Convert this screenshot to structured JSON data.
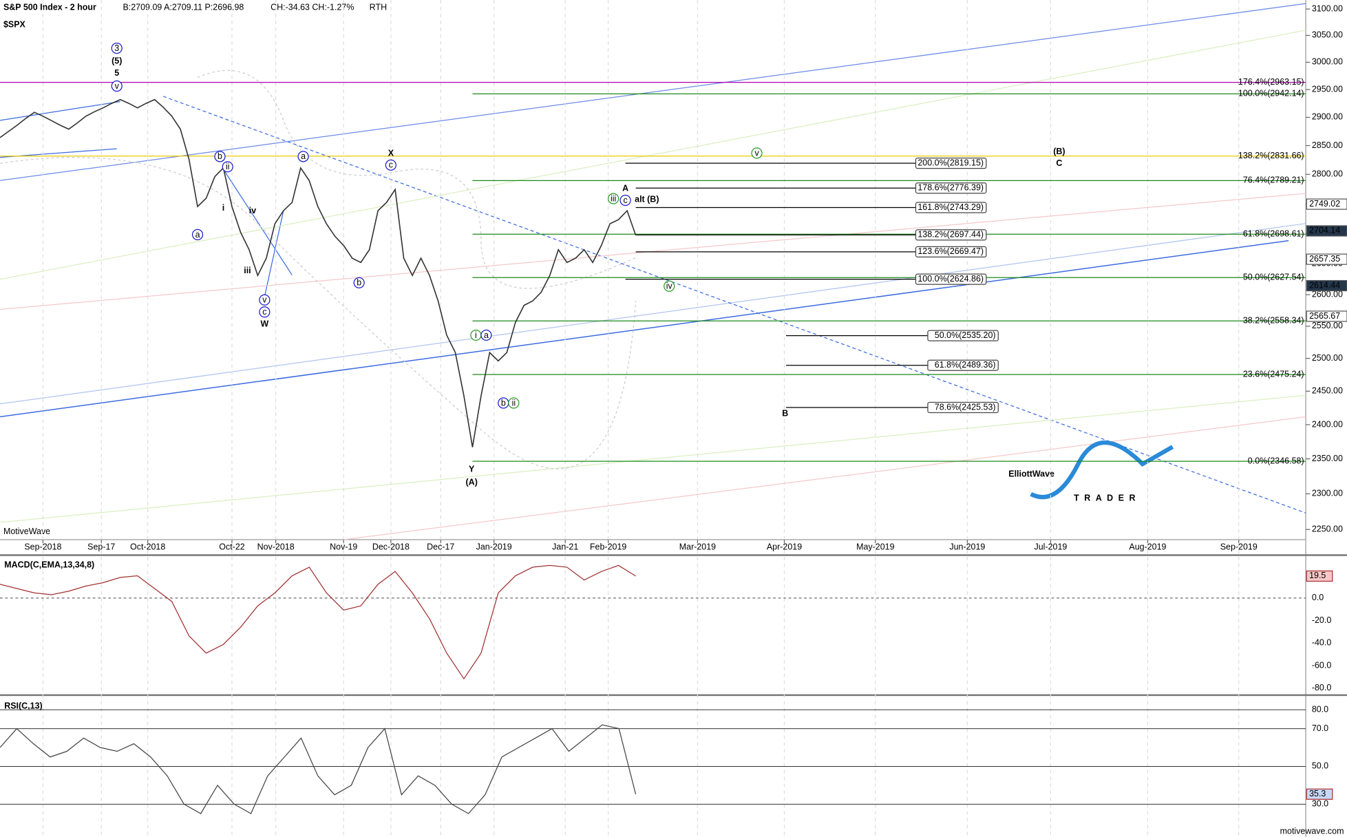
{
  "header": {
    "title": "S&P 500 Index - 2 hour",
    "quote": "B:2709.09 A:2709.11 P:2696.98",
    "change": "CH:-34.63 CH:-1.27%",
    "session": "RTH",
    "symbol": "$SPX",
    "source": "MotiveWave",
    "footer": "motivewave.com",
    "logo_main": "ElliottWave",
    "logo_sub": "TRADER"
  },
  "chart_data": [
    {
      "type": "line",
      "name": "price",
      "log_scale": true,
      "color": "#333333",
      "ylim": [
        2236,
        3117
      ],
      "yticks": [
        {
          "value": 2250,
          "label": "2250.00"
        },
        {
          "value": 2300,
          "label": "2300.00"
        },
        {
          "value": 2350,
          "label": "2350.00"
        },
        {
          "value": 2400,
          "label": "2400.00"
        },
        {
          "value": 2450,
          "label": "2450.00"
        },
        {
          "value": 2500,
          "label": "2500.00"
        },
        {
          "value": 2550,
          "label": "2550.00"
        },
        {
          "value": 2600,
          "label": "2600.00"
        },
        {
          "value": 2650,
          "label": "2650.00"
        },
        {
          "value": 2700,
          "label": "2700.00"
        },
        {
          "value": 2750,
          "label": "2750.00"
        },
        {
          "value": 2800,
          "label": "2800.00"
        },
        {
          "value": 2850,
          "label": "2850.00"
        },
        {
          "value": 2900,
          "label": "2900.00"
        },
        {
          "value": 2950,
          "label": "2950.00"
        },
        {
          "value": 3000,
          "label": "3000.00"
        },
        {
          "value": 3050,
          "label": "3050.00"
        },
        {
          "value": 3100,
          "label": "3100.00"
        }
      ],
      "x_labels": [
        "Sep-2018",
        "Sep-17",
        "Oct-2018",
        "Oct-22",
        "Nov-2018",
        "Nov-19",
        "Dec-2018",
        "Dec-17",
        "Jan-2019",
        "Jan-21",
        "Feb-2019",
        "Mar-2019",
        "Apr-2019",
        "May-2019",
        "Jun-2019",
        "Jul-2019",
        "Aug-2019",
        "Sep-2019"
      ],
      "values": [
        2864,
        2875,
        2886,
        2898,
        2909,
        2902,
        2894,
        2886,
        2879,
        2890,
        2902,
        2910,
        2917,
        2925,
        2932,
        2925,
        2917,
        2925,
        2932,
        2918,
        2902,
        2879,
        2826,
        2745,
        2759,
        2796,
        2811,
        2745,
        2702,
        2673,
        2631,
        2659,
        2716,
        2738,
        2752,
        2811,
        2789,
        2745,
        2716,
        2695,
        2680,
        2659,
        2652,
        2673,
        2738,
        2752,
        2774,
        2659,
        2631,
        2659,
        2631,
        2590,
        2536,
        2509,
        2443,
        2367,
        2443,
        2509,
        2496,
        2509,
        2556,
        2583,
        2590,
        2604,
        2631,
        2673,
        2652,
        2659,
        2673,
        2652,
        2680,
        2716,
        2723,
        2738,
        2697
      ],
      "fib_levels": [
        {
          "label": "176.4%(2963.15)",
          "value": 2963.15,
          "color": "#b000b0"
        },
        {
          "label": "100.0%(2942.14)",
          "value": 2942.14,
          "color": "#1a8a1a"
        },
        {
          "label": "138.2%(2831.66)",
          "value": 2831.66,
          "color": "#e8c800"
        },
        {
          "label": "76.4%(2789.21)",
          "value": 2789.21,
          "color": "#1a8a1a"
        },
        {
          "label": "61.8%(2698.61)",
          "value": 2698.61,
          "color": "#1a8a1a"
        },
        {
          "label": "50.0%(2627.54)",
          "value": 2627.54,
          "color": "#1a8a1a"
        },
        {
          "label": "38.2%(2558.34)",
          "value": 2558.34,
          "color": "#1a8a1a"
        },
        {
          "label": "23.6%(2475.24)",
          "value": 2475.24,
          "color": "#1a8a1a"
        },
        {
          "label": "0.0%(2346.58)",
          "value": 2346.58,
          "color": "#1a8a1a"
        }
      ],
      "fib_projections": [
        {
          "label": "200.0%(2819.15)",
          "value": 2819.15
        },
        {
          "label": "178.6%(2776.39)",
          "value": 2776.39
        },
        {
          "label": "161.8%(2743.29)",
          "value": 2743.29
        },
        {
          "label": "138.2%(2697.44)",
          "value": 2697.44
        },
        {
          "label": "123.6%(2669.47)",
          "value": 2669.47
        },
        {
          "label": "100.0%(2624.86)",
          "value": 2624.86
        },
        {
          "label": "50.0%(2535.20)",
          "value": 2535.2
        },
        {
          "label": "61.8%(2489.36)",
          "value": 2489.36
        },
        {
          "label": "78.6%(2425.53)",
          "value": 2425.53
        }
      ],
      "price_tags": [
        2749.02,
        2704.14,
        2657.35,
        2614.44,
        2565.67
      ],
      "wave_labels": [
        {
          "text": "3",
          "circled": true,
          "color": "#1a1acc"
        },
        {
          "text": "(5)",
          "circled": false,
          "color": "#1a1acc"
        },
        {
          "text": "5",
          "circled": false,
          "color": "#1a1acc"
        },
        {
          "text": "v",
          "circled": true,
          "color": "#1a1acc"
        },
        {
          "text": "a",
          "circled": true,
          "color": "#1a1acc"
        },
        {
          "text": "b",
          "circled": true,
          "color": "#1a1acc"
        },
        {
          "text": "ii",
          "circled": true,
          "color": "#1a1acc"
        },
        {
          "text": "i",
          "circled": false,
          "color": "#1a1acc"
        },
        {
          "text": "iv",
          "circled": false,
          "color": "#1a1acc"
        },
        {
          "text": "iii",
          "circled": false,
          "color": "#1a1acc"
        },
        {
          "text": "v",
          "circled": true,
          "color": "#1a1acc"
        },
        {
          "text": "c",
          "circled": true,
          "color": "#1a1acc"
        },
        {
          "text": "W",
          "circled": false,
          "color": "#1a1acc"
        },
        {
          "text": "X",
          "circled": false,
          "color": "#1a1acc"
        },
        {
          "text": "c",
          "circled": true,
          "color": "#1a1acc"
        },
        {
          "text": "a",
          "circled": true,
          "color": "#1a1acc"
        },
        {
          "text": "b",
          "circled": true,
          "color": "#1a1acc"
        },
        {
          "text": "Y",
          "circled": false,
          "color": "#1a1acc"
        },
        {
          "text": "(A)",
          "circled": false,
          "color": "#1a1acc"
        },
        {
          "text": "i",
          "circled": true,
          "color": "#2a9a2a"
        },
        {
          "text": "a",
          "circled": true,
          "color": "#1a1acc"
        },
        {
          "text": "b",
          "circled": true,
          "color": "#1a1acc"
        },
        {
          "text": "ii",
          "circled": true,
          "color": "#2a9a2a"
        },
        {
          "text": "iii",
          "circled": true,
          "color": "#2a9a2a"
        },
        {
          "text": "c",
          "circled": true,
          "color": "#1a1acc"
        },
        {
          "text": "A",
          "circled": false,
          "color": "#1a1acc"
        },
        {
          "text": "alt (B)",
          "circled": false,
          "color": "#e00000"
        },
        {
          "text": "iv",
          "circled": true,
          "color": "#2a9a2a"
        },
        {
          "text": "v",
          "circled": true,
          "color": "#2a9a2a"
        },
        {
          "text": "(B)",
          "circled": false,
          "color": "#1a1acc"
        },
        {
          "text": "C",
          "circled": false,
          "color": "#1a1acc"
        },
        {
          "text": "B",
          "circled": false,
          "color": "#1a1acc"
        }
      ]
    },
    {
      "type": "line",
      "name": "MACD(C,EMA,13,34,8)",
      "color": "#a03030",
      "ylim": [
        -85.3,
        36.6
      ],
      "yticks": [
        {
          "value": 0,
          "label": "0.0"
        },
        {
          "value": -20,
          "label": "-20.0"
        },
        {
          "value": -40,
          "label": "-40.0"
        },
        {
          "value": -60,
          "label": "-60.0"
        },
        {
          "value": -80,
          "label": "-80.0"
        }
      ],
      "values": [
        12.2,
        8.4,
        4.6,
        3.0,
        6.1,
        10.7,
        13.7,
        18.3,
        19.8,
        8.4,
        -3.0,
        -33.5,
        -48.8,
        -41.1,
        -25.9,
        -6.9,
        4.6,
        19.8,
        27.4,
        4.6,
        -10.7,
        -6.9,
        12.2,
        23.6,
        4.6,
        -18.3,
        -48.8,
        -71.6,
        -48.8,
        4.6,
        19.8,
        27.4,
        29.0,
        27.4,
        16.0,
        23.6,
        29.0,
        19.5
      ],
      "tag": 19.5
    },
    {
      "type": "line",
      "name": "RSI(C,13)",
      "color": "#444444",
      "ylim": [
        14.5,
        86.4
      ],
      "yticks": [
        {
          "value": 80,
          "label": "80.0"
        },
        {
          "value": 70,
          "label": "70.0"
        },
        {
          "value": 50,
          "label": "50.0"
        },
        {
          "value": 30,
          "label": "30.0"
        }
      ],
      "values": [
        60,
        70,
        62,
        55,
        58,
        65,
        60,
        58,
        62,
        55,
        45,
        30,
        25,
        40,
        30,
        25,
        45,
        55,
        65,
        45,
        35,
        40,
        60,
        70,
        35,
        45,
        40,
        30,
        25,
        35,
        55,
        60,
        65,
        70,
        58,
        65,
        72,
        70,
        35.3
      ],
      "tag": 35.3
    }
  ]
}
